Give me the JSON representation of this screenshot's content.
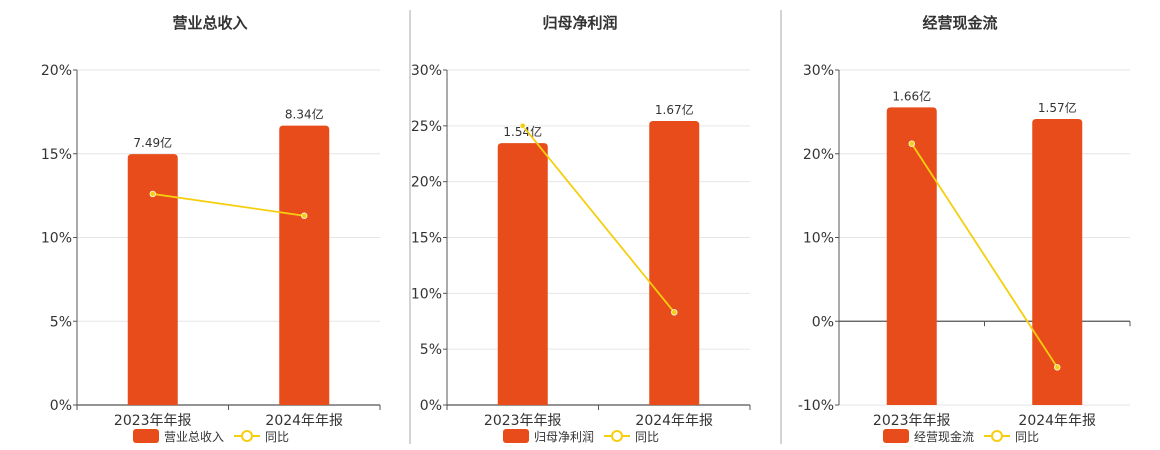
{
  "colors": {
    "bar": "#e84c1a",
    "line": "#f5cf0f",
    "grid": "#e6e6e6",
    "axis": "#555555",
    "divider": "#aaaaaa",
    "text": "#333333"
  },
  "chart_data": [
    {
      "type": "bar",
      "title": "营业总收入",
      "categories": [
        "2023年年报",
        "2024年年报"
      ],
      "series": [
        {
          "name": "营业总收入",
          "type": "bar",
          "axis": "hidden",
          "values": [
            7.49,
            8.34
          ],
          "labels": [
            "7.49亿",
            "8.34亿"
          ]
        },
        {
          "name": "同比",
          "type": "line",
          "axis": "left",
          "values": [
            12.6,
            11.3
          ]
        }
      ],
      "yticks": [
        "0%",
        "5%",
        "10%",
        "15%",
        "20%"
      ],
      "ylim": [
        0,
        20
      ],
      "bar_ylim": [
        0,
        10
      ],
      "grid": true,
      "legend": "bottom"
    },
    {
      "type": "bar",
      "title": "归母净利润",
      "categories": [
        "2023年年报",
        "2024年年报"
      ],
      "series": [
        {
          "name": "归母净利润",
          "type": "bar",
          "axis": "hidden",
          "values": [
            1.54,
            1.67
          ],
          "labels": [
            "1.54亿",
            "1.67亿"
          ]
        },
        {
          "name": "同比",
          "type": "line",
          "axis": "left",
          "values": [
            25.0,
            8.3
          ]
        }
      ],
      "yticks": [
        "0%",
        "5%",
        "10%",
        "15%",
        "20%",
        "25%",
        "30%"
      ],
      "ylim": [
        0,
        30
      ],
      "bar_ylim": [
        0,
        1.97
      ],
      "grid": true,
      "legend": "bottom"
    },
    {
      "type": "bar",
      "title": "经营现金流",
      "categories": [
        "2023年年报",
        "2024年年报"
      ],
      "series": [
        {
          "name": "经营现金流",
          "type": "bar",
          "axis": "hidden",
          "values": [
            1.66,
            1.57
          ],
          "labels": [
            "1.66亿",
            "1.57亿"
          ]
        },
        {
          "name": "同比",
          "type": "line",
          "axis": "left",
          "values": [
            21.2,
            -5.5
          ]
        }
      ],
      "yticks": [
        "-10%",
        "0%",
        "10%",
        "20%",
        "30%"
      ],
      "ylim": [
        -10,
        30
      ],
      "bar_ylim": [
        -0.65,
        1.95
      ],
      "grid": true,
      "legend": "bottom"
    }
  ]
}
